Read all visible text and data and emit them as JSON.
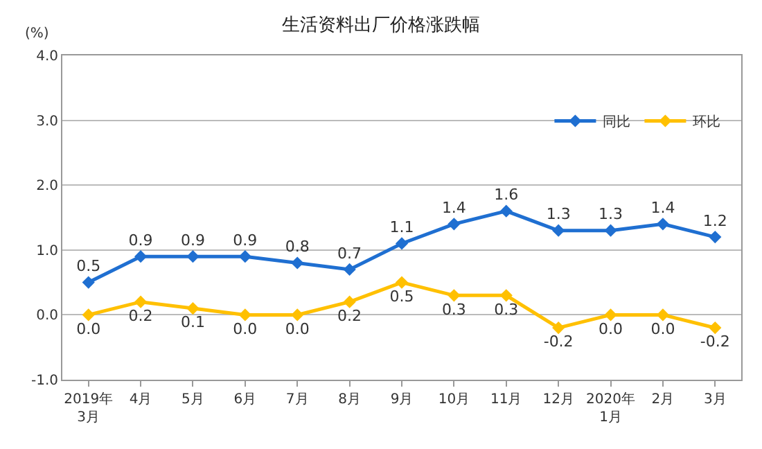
{
  "chart_data": {
    "type": "line",
    "title": "生活资料出厂价格涨跌幅",
    "ylabel": "(%)",
    "categories": [
      "2019年\n3月",
      "4月",
      "5月",
      "6月",
      "7月",
      "8月",
      "9月",
      "10月",
      "11月",
      "12月",
      "2020年\n1月",
      "2月",
      "3月"
    ],
    "series": [
      {
        "name": "同比",
        "color": "#1f6fd1",
        "values": [
          0.5,
          0.9,
          0.9,
          0.9,
          0.8,
          0.7,
          1.1,
          1.4,
          1.6,
          1.3,
          1.3,
          1.4,
          1.2
        ],
        "value_labels": [
          "0.5",
          "0.9",
          "0.9",
          "0.9",
          "0.8",
          "0.7",
          "1.1",
          "1.4",
          "1.6",
          "1.3",
          "1.3",
          "1.4",
          "1.2"
        ]
      },
      {
        "name": "环比",
        "color": "#ffc000",
        "values": [
          0.0,
          0.2,
          0.1,
          0.0,
          0.0,
          0.2,
          0.5,
          0.3,
          0.3,
          -0.2,
          0.0,
          0.0,
          -0.2
        ],
        "value_labels": [
          "0.0",
          "0.2",
          "0.1",
          "0.0",
          "0.0",
          "0.2",
          "0.5",
          "0.3",
          "0.3",
          "-0.2",
          "0.0",
          "0.0",
          "-0.2"
        ]
      }
    ],
    "ylim": [
      -1,
      4
    ],
    "yticks": [
      {
        "value": -1,
        "label": "-1.0"
      },
      {
        "value": 0,
        "label": "0.0"
      },
      {
        "value": 1,
        "label": "1.0"
      },
      {
        "value": 2,
        "label": "2.0"
      },
      {
        "value": 3,
        "label": "3.0"
      },
      {
        "value": 4,
        "label": "4.0"
      }
    ],
    "grid": "y",
    "legend": "top right",
    "marker": "diamond",
    "line_style": "solid"
  }
}
